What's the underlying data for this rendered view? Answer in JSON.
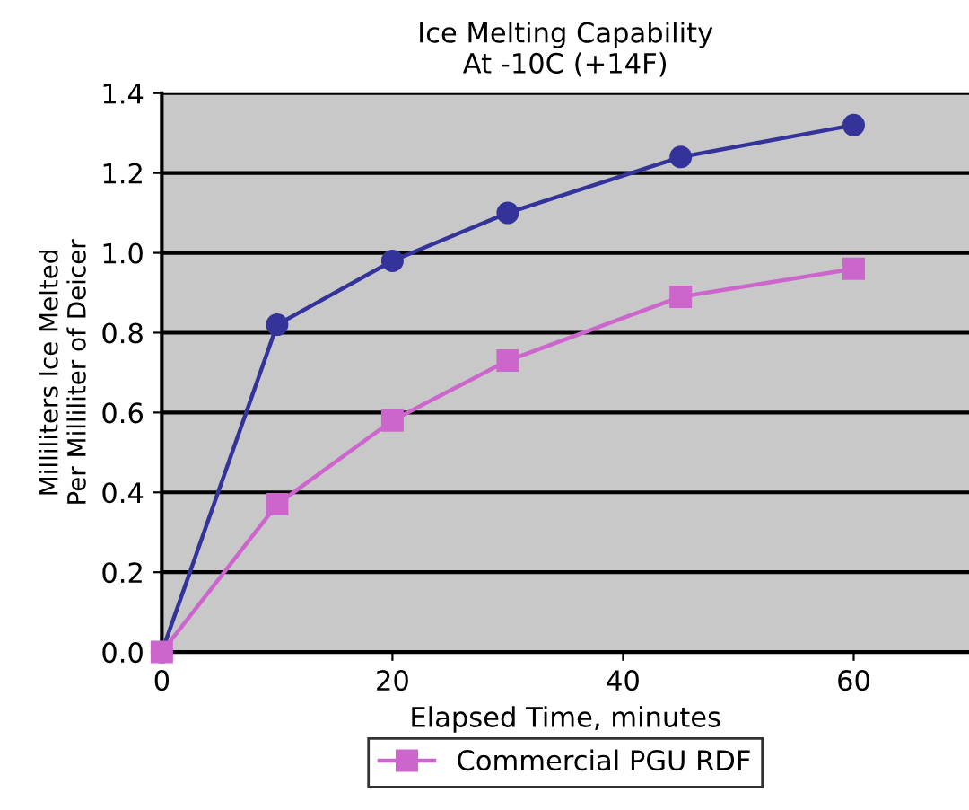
{
  "chart_data": {
    "type": "line",
    "title": "Ice Melting Capability\nAt -10C (+14F)",
    "xlabel": "Elapsed Time, minutes",
    "ylabel": "Milliliters Ice Melted\nPer Milliliter of Deicer",
    "x": [
      0,
      10,
      20,
      30,
      45,
      60
    ],
    "series": [
      {
        "color": "#333399",
        "marker": "circle",
        "values": [
          0,
          0.82,
          0.98,
          1.1,
          1.24,
          1.32
        ]
      },
      {
        "name": "Commercial PGU RDF",
        "color": "#cc66cc",
        "marker": "square",
        "values": [
          0,
          0.37,
          0.58,
          0.73,
          0.89,
          0.96
        ]
      }
    ],
    "xlim": [
      0,
      70
    ],
    "xticks": [
      0,
      20,
      40,
      60
    ],
    "ylim": [
      0,
      1.4
    ],
    "yticks": [
      {
        "value": 0,
        "label": "0.0"
      },
      0.2,
      0.4,
      0.6,
      0.8,
      {
        "value": 1,
        "label": "1.0"
      },
      1.2,
      1.4
    ],
    "grid": "y",
    "legend": "bottom"
  }
}
